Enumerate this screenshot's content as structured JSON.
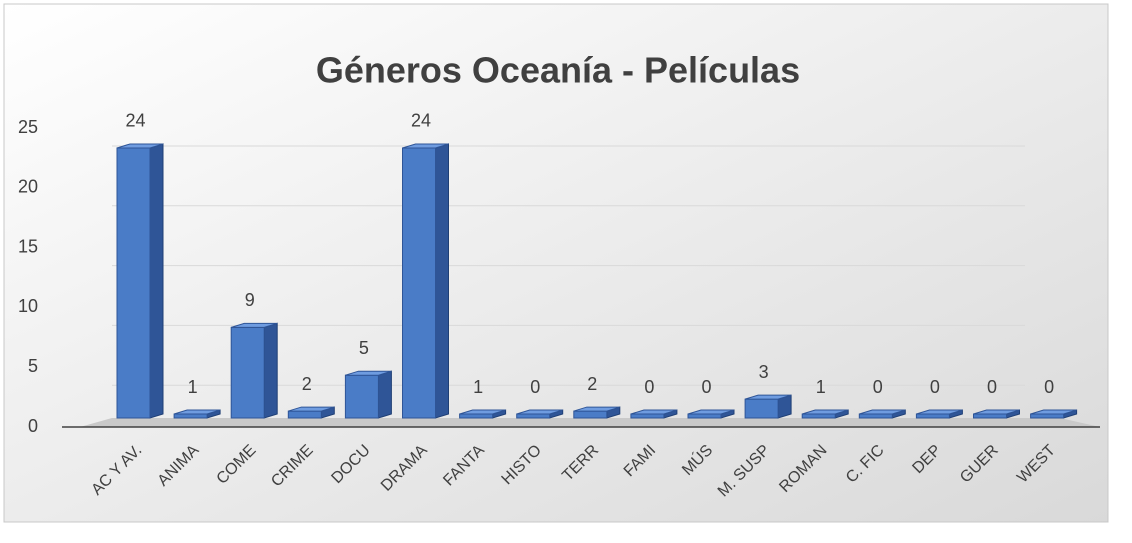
{
  "chart_data": {
    "type": "bar3d",
    "title": "Géneros Oceanía - Películas",
    "categories": [
      "AC Y AV.",
      "ANIMA",
      "COME",
      "CRIME",
      "DOCU",
      "DRAMA",
      "FANTA",
      "HISTO",
      "TERR",
      "FAMI",
      "MÚS",
      "M. SUSP",
      "ROMAN",
      "C. FIC",
      "DEP",
      "GUER",
      "WEST"
    ],
    "values": [
      24,
      1,
      9,
      2,
      5,
      24,
      1,
      0,
      2,
      0,
      0,
      3,
      1,
      0,
      0,
      0,
      0
    ],
    "color": "#4a7cc7",
    "ylim": [
      0,
      25
    ],
    "yticks": [
      0,
      5,
      10,
      15,
      20,
      25
    ],
    "grid": true
  }
}
